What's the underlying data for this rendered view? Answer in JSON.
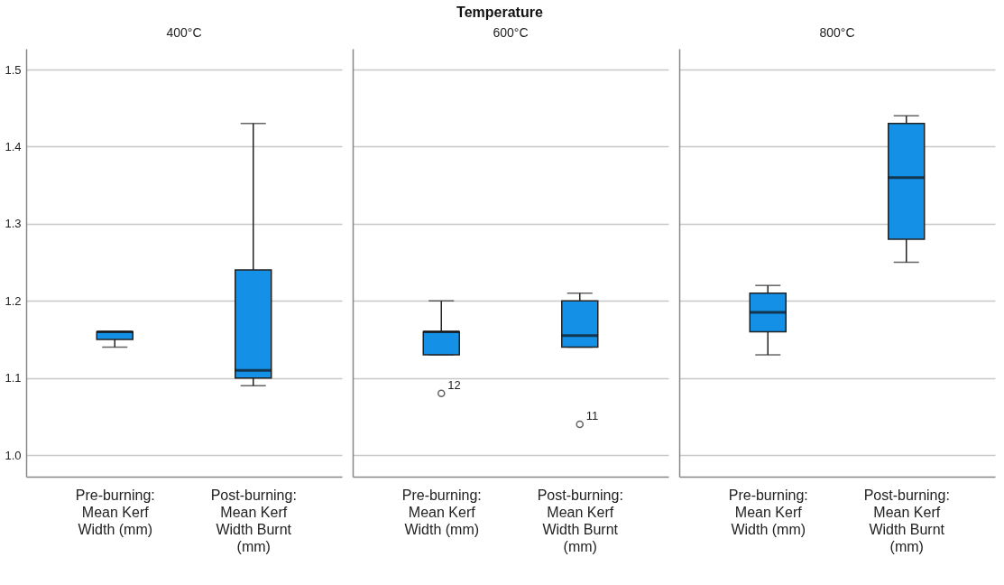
{
  "chart_data": [
    {
      "type": "box",
      "title": "400°C",
      "annotations": [
        "Temperature"
      ],
      "categories": [
        "Pre-burning: Mean Kerf Width (mm)",
        "Post-burning: Mean Kerf Width Burnt (mm)"
      ],
      "series": [
        {
          "color": "#1490e6",
          "boxes": [
            {
              "low": 1.14,
              "q1": 1.15,
              "median": 1.16,
              "q3": 1.16,
              "high": 1.16
            },
            {
              "low": 1.09,
              "q1": 1.1,
              "median": 1.11,
              "q3": 1.24,
              "high": 1.43
            }
          ]
        }
      ],
      "ylim": [
        0.972,
        1.527
      ],
      "yticks": [
        {
          "value": 1.0,
          "label": "1.0"
        },
        1.1,
        1.2,
        1.3,
        1.4,
        1.5
      ],
      "grid": "y"
    },
    {
      "type": "box",
      "title": "600°C",
      "annotations": [
        "12",
        "11"
      ],
      "categories": [
        "Pre-burning: Mean Kerf Width (mm)",
        "Post-burning: Mean Kerf Width Burnt (mm)"
      ],
      "series": [
        {
          "color": "#1490e6",
          "boxes": [
            {
              "low": 1.13,
              "q1": 1.13,
              "median": 1.16,
              "q3": 1.16,
              "high": 1.2,
              "outliers": [
                1.08
              ]
            },
            {
              "low": 1.14,
              "q1": 1.14,
              "median": 1.155,
              "q3": 1.2,
              "high": 1.21,
              "outliers": [
                1.04
              ]
            }
          ]
        }
      ],
      "ylim": [
        0.972,
        1.527
      ],
      "yticks": [
        1,
        1.1,
        1.2,
        1.3,
        1.4,
        1.5
      ],
      "grid": "y",
      "tick_labels": "x"
    },
    {
      "type": "box",
      "title": "800°C",
      "categories": [
        "Pre-burning: Mean Kerf Width (mm)",
        "Post-burning: Mean Kerf Width Burnt (mm)"
      ],
      "series": [
        {
          "color": "#1490e6",
          "boxes": [
            {
              "low": 1.13,
              "q1": 1.16,
              "median": 1.185,
              "q3": 1.21,
              "high": 1.22
            },
            {
              "low": 1.25,
              "q1": 1.28,
              "median": 1.36,
              "q3": 1.43,
              "high": 1.44
            }
          ]
        }
      ],
      "ylim": [
        0.972,
        1.527
      ],
      "yticks": [
        1,
        1.1,
        1.2,
        1.3,
        1.4,
        1.5
      ],
      "grid": "y",
      "tick_labels": "x"
    }
  ]
}
